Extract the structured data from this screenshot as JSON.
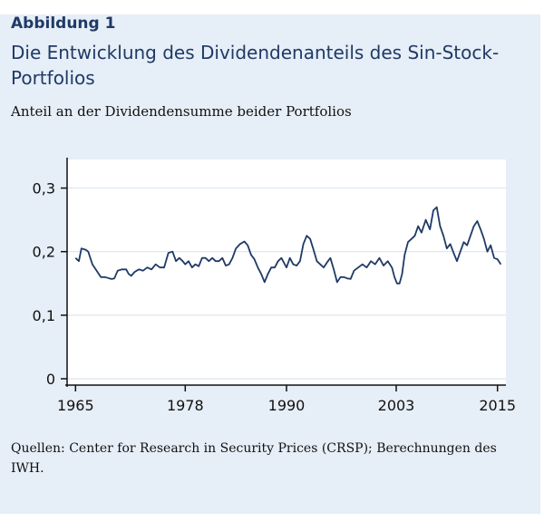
{
  "figure": {
    "label": "Abbildung 1",
    "title": "Die Entwicklung des Dividendenanteils des Sin-Stock-Portfolios",
    "subtitle": "Anteil an der Dividendensumme beider Portfolios",
    "source": "Quellen: Center for Research in Security Prices (CRSP); Berechnungen des IWH."
  },
  "colors": {
    "frame_background": "#e6eef7",
    "plot_background": "#ffffff",
    "line": "#1f3a66",
    "title": "#1f3a66"
  },
  "chart_data": {
    "type": "line",
    "title": "",
    "xlabel": "",
    "ylabel": "",
    "xlim": [
      1964,
      2016
    ],
    "ylim": [
      -0.01,
      0.345
    ],
    "grid": true,
    "legend": "none",
    "x_ticks": [
      1965,
      1978,
      1990,
      2003,
      2015
    ],
    "x_tick_labels": [
      "1965",
      "1978",
      "1990",
      "2003",
      "2015"
    ],
    "y_ticks": [
      0,
      0.1,
      0.2,
      0.3
    ],
    "y_tick_labels": [
      "0",
      "0,1",
      "0,2",
      "0,3"
    ],
    "series": [
      {
        "x": [
          1965.0,
          1965.4,
          1965.7,
          1966.2,
          1966.5,
          1967.0,
          1967.5,
          1968.0,
          1968.5,
          1969.0,
          1969.3,
          1969.6,
          1970.0,
          1970.5,
          1971.0,
          1971.3,
          1971.6,
          1972.0,
          1972.5,
          1973.0,
          1973.5,
          1974.0,
          1974.5,
          1975.0,
          1975.5,
          1976.0,
          1976.5,
          1976.9,
          1977.3,
          1977.7,
          1978.0,
          1978.4,
          1978.8,
          1979.2,
          1979.6,
          1980.0,
          1980.4,
          1980.8,
          1981.2,
          1981.6,
          1982.0,
          1982.4,
          1982.8,
          1983.2,
          1983.6,
          1984.0,
          1984.5,
          1985.0,
          1985.4,
          1985.8,
          1986.2,
          1986.6,
          1987.0,
          1987.4,
          1987.8,
          1988.2,
          1988.6,
          1989.0,
          1989.4,
          1989.8,
          1990.0,
          1990.4,
          1990.8,
          1991.2,
          1991.6,
          1992.0,
          1992.4,
          1992.8,
          1993.2,
          1993.6,
          1994.0,
          1994.4,
          1994.8,
          1995.2,
          1995.6,
          1996.0,
          1996.4,
          1996.8,
          1997.2,
          1997.6,
          1998.0,
          1998.5,
          1999.0,
          1999.5,
          2000.0,
          2000.5,
          2001.0,
          2001.5,
          2002.0,
          2002.5,
          2002.8,
          2003.1,
          2003.4,
          2003.7,
          2004.0,
          2004.4,
          2004.8,
          2005.2,
          2005.6,
          2006.0,
          2006.5,
          2007.0,
          2007.4,
          2007.8,
          2008.2,
          2008.6,
          2009.0,
          2009.4,
          2009.8,
          2010.2,
          2010.6,
          2011.0,
          2011.4,
          2011.8,
          2012.2,
          2012.6,
          2013.0,
          2013.4,
          2013.8,
          2014.2,
          2014.6,
          2015.0,
          2015.4
        ],
        "y": [
          0.19,
          0.185,
          0.205,
          0.203,
          0.2,
          0.18,
          0.17,
          0.16,
          0.16,
          0.158,
          0.157,
          0.158,
          0.17,
          0.172,
          0.172,
          0.165,
          0.162,
          0.168,
          0.172,
          0.17,
          0.175,
          0.172,
          0.18,
          0.175,
          0.175,
          0.198,
          0.2,
          0.185,
          0.19,
          0.185,
          0.18,
          0.185,
          0.175,
          0.18,
          0.177,
          0.19,
          0.19,
          0.185,
          0.19,
          0.185,
          0.185,
          0.19,
          0.178,
          0.18,
          0.19,
          0.205,
          0.212,
          0.216,
          0.21,
          0.195,
          0.188,
          0.175,
          0.165,
          0.152,
          0.165,
          0.175,
          0.175,
          0.185,
          0.19,
          0.18,
          0.175,
          0.19,
          0.18,
          0.178,
          0.185,
          0.212,
          0.225,
          0.22,
          0.203,
          0.185,
          0.18,
          0.175,
          0.183,
          0.19,
          0.172,
          0.152,
          0.16,
          0.16,
          0.158,
          0.157,
          0.17,
          0.175,
          0.18,
          0.175,
          0.185,
          0.18,
          0.19,
          0.178,
          0.185,
          0.175,
          0.16,
          0.15,
          0.15,
          0.165,
          0.195,
          0.215,
          0.22,
          0.225,
          0.24,
          0.23,
          0.25,
          0.235,
          0.265,
          0.27,
          0.24,
          0.225,
          0.205,
          0.212,
          0.198,
          0.185,
          0.2,
          0.215,
          0.21,
          0.225,
          0.24,
          0.248,
          0.235,
          0.22,
          0.2,
          0.21,
          0.19,
          0.188,
          0.18
        ]
      }
    ]
  }
}
